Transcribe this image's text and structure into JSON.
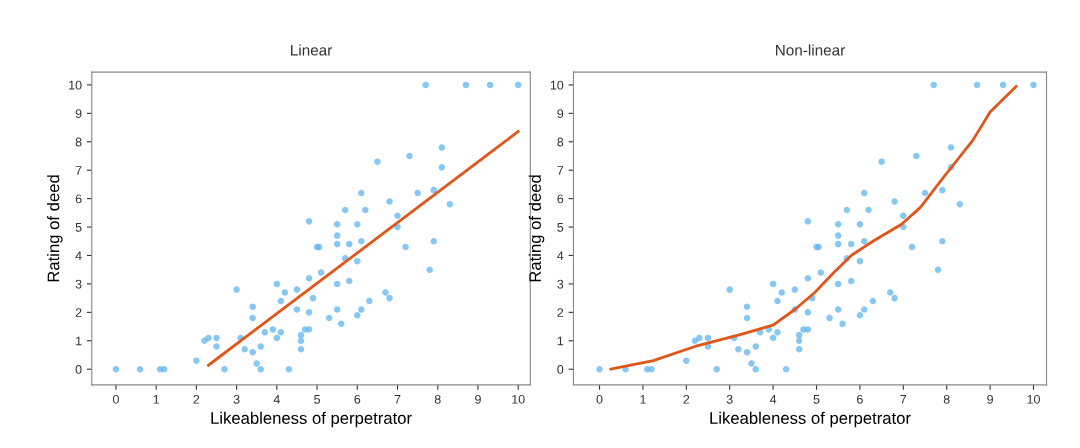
{
  "chart_data": [
    {
      "type": "scatter",
      "title": "Linear",
      "xlabel": "Likeableness of perpetrator",
      "ylabel": "Rating of deed",
      "xlim": [
        -0.6,
        10.3
      ],
      "ylim": [
        -0.55,
        10.45
      ],
      "xticks": [
        0,
        1,
        2,
        3,
        4,
        5,
        6,
        7,
        8,
        9,
        10
      ],
      "yticks": [
        0,
        1,
        2,
        3,
        4,
        5,
        6,
        7,
        8,
        9,
        10
      ],
      "grid": false,
      "marker": "circle",
      "series": [
        {
          "color": "#5fb4f0",
          "x": [
            0,
            0.6,
            1.1,
            1.2,
            7.7,
            8.7,
            9.3,
            10,
            2.0,
            2.2,
            2.3,
            2.5,
            2.5,
            2.7,
            3.0,
            3.1,
            3.2,
            3.4,
            3.4,
            3.4,
            3.5,
            3.6,
            3.6,
            3.7,
            3.9,
            4.0,
            4.1,
            4.0,
            4.1,
            4.2,
            4.3,
            4.5,
            4.5,
            4.6,
            4.6,
            4.6,
            4.7,
            4.8,
            4.8,
            4.8,
            4.9,
            4.8,
            5.0,
            5.05,
            5.1,
            5.3,
            5.5,
            5.5,
            5.5,
            5.5,
            5.5,
            5.6,
            5.7,
            5.8,
            5.8,
            5.7,
            6.0,
            6.0,
            6.0,
            6.1,
            6.1,
            6.1,
            6.2,
            6.3,
            6.5,
            6.7,
            6.8,
            6.8,
            7.0,
            7.0,
            7.2,
            7.3,
            7.5,
            7.8,
            7.9,
            7.9,
            8.1,
            8.1,
            8.3
          ],
          "values": [
            0,
            0,
            0,
            0,
            10,
            10,
            10,
            10,
            0.3,
            1.0,
            1.1,
            1.1,
            0.8,
            0,
            2.8,
            1.1,
            0.7,
            0.6,
            1.8,
            2.2,
            0.2,
            0,
            0.8,
            1.3,
            1.4,
            3.0,
            2.4,
            1.1,
            1.3,
            2.7,
            0,
            2.1,
            2.8,
            1.2,
            0.7,
            1.0,
            1.4,
            2.0,
            3.2,
            5.2,
            2.5,
            1.4,
            4.3,
            4.3,
            3.4,
            1.8,
            2.1,
            5.1,
            4.7,
            4.4,
            3.0,
            1.6,
            5.6,
            4.4,
            3.1,
            3.9,
            5.1,
            1.9,
            3.8,
            6.2,
            4.5,
            2.1,
            5.6,
            2.4,
            7.3,
            2.7,
            2.5,
            5.9,
            5.4,
            5.0,
            4.3,
            7.5,
            6.2,
            3.5,
            4.5,
            6.3,
            7.1,
            7.8,
            5.8
          ]
        },
        {
          "type": "line",
          "color": "#e0561a",
          "marker": "none",
          "line_style": "solid",
          "x": [
            2.3,
            10
          ],
          "values": [
            0.14,
            8.36
          ]
        }
      ]
    },
    {
      "type": "scatter",
      "title": "Non-linear",
      "xlabel": "Likeableness of perpetrator",
      "ylabel": "Rating of deed",
      "xlim": [
        -0.6,
        10.3
      ],
      "ylim": [
        -0.55,
        10.45
      ],
      "xticks": [
        0,
        1,
        2,
        3,
        4,
        5,
        6,
        7,
        8,
        9,
        10
      ],
      "yticks": [
        0,
        1,
        2,
        3,
        4,
        5,
        6,
        7,
        8,
        9,
        10
      ],
      "grid": false,
      "marker": "circle",
      "series": [
        {
          "color": "#5fb4f0",
          "x": [
            0,
            0.6,
            1.1,
            1.2,
            7.7,
            8.7,
            9.3,
            10,
            2.0,
            2.2,
            2.3,
            2.5,
            2.5,
            2.7,
            3.0,
            3.1,
            3.2,
            3.4,
            3.4,
            3.4,
            3.5,
            3.6,
            3.6,
            3.7,
            3.9,
            4.0,
            4.1,
            4.0,
            4.1,
            4.2,
            4.3,
            4.5,
            4.5,
            4.6,
            4.6,
            4.6,
            4.7,
            4.8,
            4.8,
            4.8,
            4.9,
            4.8,
            5.0,
            5.05,
            5.1,
            5.3,
            5.5,
            5.5,
            5.5,
            5.5,
            5.5,
            5.6,
            5.7,
            5.8,
            5.8,
            5.7,
            6.0,
            6.0,
            6.0,
            6.1,
            6.1,
            6.1,
            6.2,
            6.3,
            6.5,
            6.7,
            6.8,
            6.8,
            7.0,
            7.0,
            7.2,
            7.3,
            7.5,
            7.8,
            7.9,
            7.9,
            8.1,
            8.1,
            8.3
          ],
          "values": [
            0,
            0,
            0,
            0,
            10,
            10,
            10,
            10,
            0.3,
            1.0,
            1.1,
            1.1,
            0.8,
            0,
            2.8,
            1.1,
            0.7,
            0.6,
            1.8,
            2.2,
            0.2,
            0,
            0.8,
            1.3,
            1.4,
            3.0,
            2.4,
            1.1,
            1.3,
            2.7,
            0,
            2.1,
            2.8,
            1.2,
            0.7,
            1.0,
            1.4,
            2.0,
            3.2,
            5.2,
            2.5,
            1.4,
            4.3,
            4.3,
            3.4,
            1.8,
            2.1,
            5.1,
            4.7,
            4.4,
            3.0,
            1.6,
            5.6,
            4.4,
            3.1,
            3.9,
            5.1,
            1.9,
            3.8,
            6.2,
            4.5,
            2.1,
            5.6,
            2.4,
            7.3,
            2.7,
            2.5,
            5.9,
            5.4,
            5.0,
            4.3,
            7.5,
            6.2,
            3.5,
            4.5,
            6.3,
            7.1,
            7.8,
            5.8
          ]
        },
        {
          "type": "line",
          "color": "#e0561a",
          "marker": "none",
          "line_style": "solid",
          "x": [
            0.26,
            1.24,
            2.2,
            3.2,
            4.0,
            4.5,
            4.96,
            5.4,
            5.8,
            6.3,
            6.96,
            7.4,
            7.9,
            8.6,
            9.0,
            9.6
          ],
          "values": [
            0,
            0.3,
            0.8,
            1.2,
            1.55,
            2.1,
            2.7,
            3.4,
            4.0,
            4.5,
            5.1,
            5.7,
            6.7,
            8.05,
            9.05,
            9.95
          ]
        }
      ]
    }
  ]
}
